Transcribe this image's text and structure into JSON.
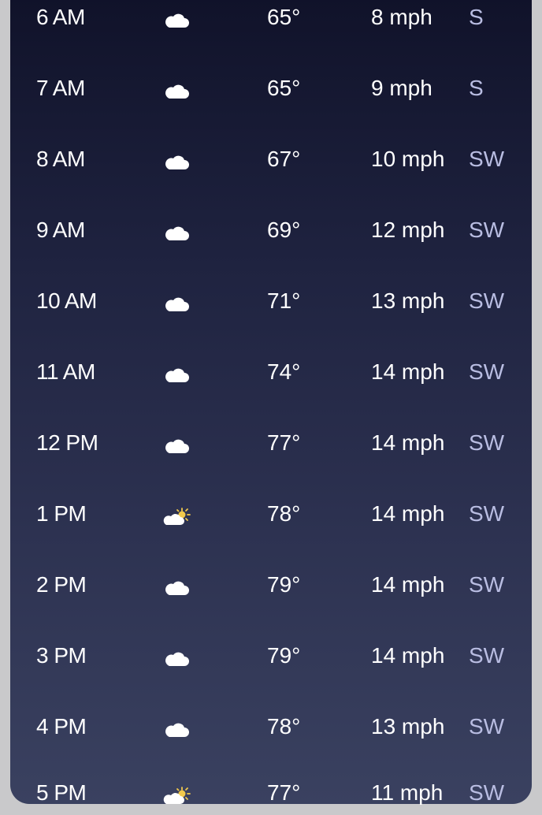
{
  "hours": [
    {
      "time": "6 AM",
      "icon": "cloud-icon",
      "temp": "65°",
      "wind": "8 mph",
      "dir": "S"
    },
    {
      "time": "7 AM",
      "icon": "cloud-icon",
      "temp": "65°",
      "wind": "9 mph",
      "dir": "S"
    },
    {
      "time": "8 AM",
      "icon": "cloud-icon",
      "temp": "67°",
      "wind": "10 mph",
      "dir": "SW"
    },
    {
      "time": "9 AM",
      "icon": "cloud-icon",
      "temp": "69°",
      "wind": "12 mph",
      "dir": "SW"
    },
    {
      "time": "10 AM",
      "icon": "cloud-icon",
      "temp": "71°",
      "wind": "13 mph",
      "dir": "SW"
    },
    {
      "time": "11 AM",
      "icon": "cloud-icon",
      "temp": "74°",
      "wind": "14 mph",
      "dir": "SW"
    },
    {
      "time": "12 PM",
      "icon": "cloud-icon",
      "temp": "77°",
      "wind": "14 mph",
      "dir": "SW"
    },
    {
      "time": "1 PM",
      "icon": "partly-sunny-icon",
      "temp": "78°",
      "wind": "14 mph",
      "dir": "SW"
    },
    {
      "time": "2 PM",
      "icon": "cloud-icon",
      "temp": "79°",
      "wind": "14 mph",
      "dir": "SW"
    },
    {
      "time": "3 PM",
      "icon": "cloud-icon",
      "temp": "79°",
      "wind": "14 mph",
      "dir": "SW"
    },
    {
      "time": "4 PM",
      "icon": "cloud-icon",
      "temp": "78°",
      "wind": "13 mph",
      "dir": "SW"
    },
    {
      "time": "5 PM",
      "icon": "partly-sunny-icon",
      "temp": "77°",
      "wind": "11 mph",
      "dir": "SW"
    }
  ],
  "colors": {
    "direction": "#b9bde2",
    "sun": "#f2c94c"
  }
}
